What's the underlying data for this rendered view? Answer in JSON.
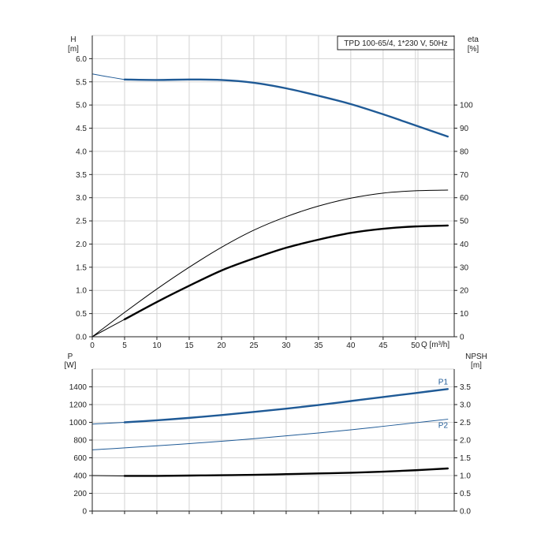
{
  "legend": {
    "title": "TPD 100-65/4, 1*230 V, 50Hz"
  },
  "axes": {
    "h_label": "H",
    "h_unit": "[m]",
    "eta_label": "eta",
    "eta_unit": "[%]",
    "q_label": "Q [m³/h]",
    "p_label": "P",
    "p_unit": "[W]",
    "npsh_label": "NPSH",
    "npsh_unit": "[m]"
  },
  "colors": {
    "grid": "#d3d3d3",
    "axis": "#222222",
    "blue": "#1f5a96",
    "black": "#000000"
  },
  "chart_data": [
    {
      "type": "line",
      "name_hint": "upper-panel",
      "xlim": [
        0,
        56
      ],
      "x_ticks": [
        0,
        5,
        10,
        15,
        20,
        25,
        30,
        35,
        40,
        45,
        50
      ],
      "ylim": [
        0,
        6.5
      ],
      "y_ticks": [
        "0.0",
        "0.5",
        "1.0",
        "1.5",
        "2.0",
        "2.5",
        "3.0",
        "3.5",
        "4.0",
        "4.5",
        "5.0",
        "5.5",
        "6.0"
      ],
      "y2lim": [
        0,
        130
      ],
      "y2_ticks": [
        0,
        10,
        20,
        30,
        40,
        50,
        60,
        70,
        80,
        90,
        100
      ],
      "grid": true,
      "series": [
        {
          "key": "H_ext",
          "axis": "left",
          "style": "thin-blue",
          "x": [
            0,
            2,
            5
          ],
          "y": [
            5.67,
            5.62,
            5.55
          ]
        },
        {
          "key": "H",
          "axis": "left",
          "style": "bold-blue",
          "x": [
            5,
            10,
            15,
            20,
            25,
            30,
            35,
            40,
            45,
            50,
            55
          ],
          "y": [
            5.55,
            5.54,
            5.55,
            5.54,
            5.48,
            5.36,
            5.2,
            5.02,
            4.8,
            4.56,
            4.32
          ]
        },
        {
          "key": "eta_total",
          "axis": "right",
          "style": "thin-black",
          "x": [
            0,
            5,
            10,
            15,
            20,
            25,
            30,
            35,
            40,
            45,
            50,
            55
          ],
          "y": [
            0,
            10.5,
            20.6,
            30,
            38.6,
            46,
            51.8,
            56.4,
            59.8,
            62,
            63,
            63.3
          ]
        },
        {
          "key": "eta_pump_ext",
          "axis": "right",
          "style": "thin-black",
          "x": [
            0,
            5
          ],
          "y": [
            0,
            7.5
          ]
        },
        {
          "key": "eta_pump",
          "axis": "right",
          "style": "bold-black",
          "x": [
            5,
            10,
            15,
            20,
            25,
            30,
            35,
            40,
            45,
            50,
            55
          ],
          "y": [
            7.5,
            15,
            22,
            28.6,
            33.8,
            38.4,
            41.9,
            44.8,
            46.6,
            47.6,
            48
          ]
        }
      ]
    },
    {
      "type": "line",
      "name_hint": "lower-panel",
      "xlim": [
        0,
        56
      ],
      "ylim": [
        0,
        1600
      ],
      "y_ticks": [
        0,
        200,
        400,
        600,
        800,
        1000,
        1200,
        1400
      ],
      "y2lim": [
        0,
        4
      ],
      "y2_ticks": [
        "0.0",
        "0.5",
        "1.0",
        "1.5",
        "2.0",
        "2.5",
        "3.0",
        "3.5"
      ],
      "grid": true,
      "series": [
        {
          "key": "P1_ext",
          "axis": "left",
          "style": "thin-blue",
          "x": [
            0,
            5
          ],
          "y": [
            980,
            1000
          ]
        },
        {
          "key": "P1",
          "axis": "left",
          "style": "bold-blue",
          "x": [
            5,
            10,
            15,
            20,
            25,
            30,
            35,
            40,
            45,
            50,
            55
          ],
          "y": [
            1000,
            1023,
            1050,
            1082,
            1117,
            1154,
            1195,
            1240,
            1285,
            1330,
            1375
          ],
          "label": "P1"
        },
        {
          "key": "P2",
          "axis": "left",
          "style": "thin-blue",
          "x": [
            0,
            5,
            10,
            15,
            20,
            25,
            30,
            35,
            40,
            45,
            50,
            55
          ],
          "y": [
            690,
            712,
            735,
            760,
            787,
            815,
            848,
            880,
            915,
            955,
            995,
            1035
          ],
          "label": "P2"
        },
        {
          "key": "NPSH_ext",
          "axis": "right",
          "style": "thin-black",
          "x": [
            0,
            5
          ],
          "y": [
            1.0,
            0.99
          ]
        },
        {
          "key": "NPSH",
          "axis": "right",
          "style": "bold-black",
          "x": [
            5,
            10,
            15,
            20,
            25,
            30,
            35,
            40,
            45,
            50,
            55
          ],
          "y": [
            0.99,
            0.99,
            1.0,
            1.01,
            1.02,
            1.04,
            1.06,
            1.08,
            1.11,
            1.15,
            1.2
          ]
        }
      ]
    }
  ]
}
